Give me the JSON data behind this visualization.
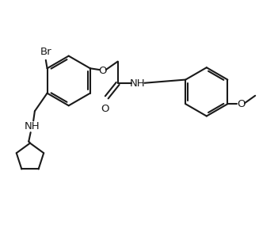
{
  "background_color": "#ffffff",
  "line_color": "#1a1a1a",
  "bond_width": 1.5,
  "text_fontsize": 9.5,
  "fig_width": 3.51,
  "fig_height": 2.84,
  "dpi": 100,
  "xlim": [
    0,
    10
  ],
  "ylim": [
    0,
    8
  ]
}
